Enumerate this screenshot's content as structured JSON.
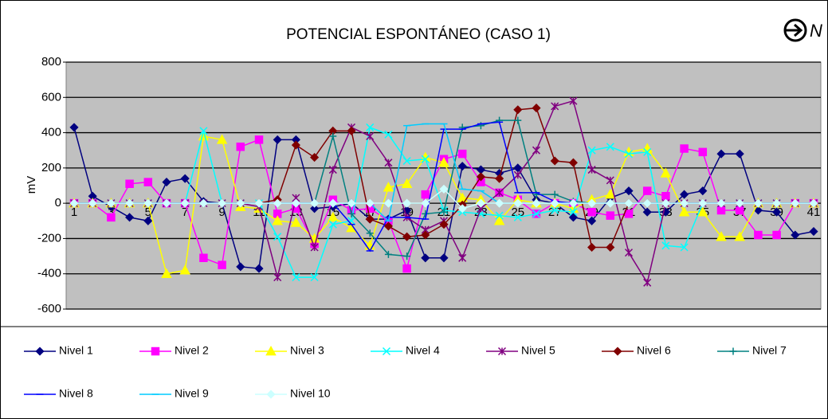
{
  "chart_data": {
    "type": "line",
    "title": "POTENCIAL ESPONTÁNEO (CASO 1)",
    "corner_label": "N",
    "y_label": "mV",
    "categories": [
      1,
      null,
      3,
      null,
      5,
      null,
      7,
      null,
      9,
      null,
      11,
      null,
      13,
      null,
      15,
      null,
      17,
      null,
      19,
      null,
      21,
      null,
      23,
      null,
      25,
      null,
      27,
      null,
      29,
      null,
      31,
      null,
      33,
      null,
      35,
      null,
      37,
      null,
      39,
      null,
      41
    ],
    "ylim": [
      -600,
      800
    ],
    "yticks": [
      -600,
      -400,
      -200,
      0,
      200,
      400,
      600,
      800
    ],
    "grid": true,
    "legend": "bottom",
    "series": [
      {
        "name": "Nivel 1",
        "color": "#000080",
        "marker": "diamond",
        "values": [
          430,
          40,
          -20,
          -80,
          -100,
          120,
          140,
          10,
          0,
          -360,
          -370,
          360,
          360,
          -30,
          -20,
          0,
          -90,
          -90,
          -40,
          -310,
          -310,
          210,
          190,
          170,
          200,
          20,
          0,
          -80,
          -100,
          30,
          70,
          -50,
          -50,
          50,
          70,
          280,
          280,
          -40,
          -50,
          -180,
          -160
        ]
      },
      {
        "name": "Nivel 2",
        "color": "#ff00ff",
        "marker": "square",
        "values": [
          0,
          0,
          -80,
          110,
          120,
          0,
          0,
          -310,
          -350,
          320,
          360,
          -60,
          -30,
          -230,
          20,
          -40,
          -30,
          -100,
          -370,
          50,
          250,
          280,
          120,
          60,
          20,
          -60,
          0,
          0,
          -50,
          -70,
          -60,
          70,
          40,
          310,
          290,
          -40,
          -40,
          -180,
          -180,
          0,
          0
        ]
      },
      {
        "name": "Nivel 3",
        "color": "#ffff00",
        "marker": "triangle",
        "values": [
          0,
          0,
          0,
          0,
          0,
          -400,
          -380,
          380,
          360,
          -20,
          -30,
          -100,
          -110,
          -200,
          -80,
          -140,
          -240,
          90,
          110,
          260,
          230,
          30,
          20,
          -100,
          20,
          0,
          0,
          -30,
          20,
          50,
          290,
          310,
          170,
          -50,
          -50,
          -190,
          -190,
          0,
          0,
          0,
          0
        ]
      },
      {
        "name": "Nivel 4",
        "color": "#00ffff",
        "marker": "x",
        "values": [
          0,
          0,
          0,
          0,
          0,
          0,
          0,
          410,
          0,
          0,
          0,
          -190,
          -420,
          -420,
          -120,
          -100,
          430,
          390,
          240,
          250,
          -40,
          -50,
          -60,
          -70,
          -80,
          -60,
          -40,
          -50,
          300,
          320,
          280,
          290,
          -240,
          -250,
          0,
          0,
          0,
          0,
          0,
          0,
          0
        ]
      },
      {
        "name": "Nivel 5",
        "color": "#800080",
        "marker": "star",
        "values": [
          0,
          0,
          0,
          0,
          0,
          0,
          0,
          0,
          0,
          0,
          -20,
          -420,
          30,
          -250,
          190,
          430,
          380,
          230,
          -80,
          -150,
          -100,
          -310,
          -30,
          60,
          160,
          300,
          550,
          580,
          190,
          130,
          -280,
          -450,
          0,
          0,
          0,
          0,
          0,
          0,
          0,
          0,
          0
        ]
      },
      {
        "name": "Nivel 6",
        "color": "#800000",
        "marker": "diamond",
        "values": [
          0,
          0,
          0,
          0,
          0,
          0,
          0,
          0,
          0,
          0,
          0,
          20,
          330,
          260,
          410,
          410,
          -90,
          -130,
          -190,
          -180,
          -120,
          -10,
          150,
          140,
          530,
          540,
          240,
          230,
          -250,
          -250,
          0,
          0,
          0,
          0,
          0,
          0,
          0,
          0,
          0,
          0,
          0
        ]
      },
      {
        "name": "Nivel 7",
        "color": "#008080",
        "marker": "plus",
        "values": [
          0,
          0,
          0,
          0,
          0,
          0,
          0,
          0,
          0,
          0,
          0,
          0,
          0,
          0,
          380,
          -60,
          -170,
          -290,
          -300,
          -60,
          -50,
          430,
          440,
          470,
          470,
          50,
          50,
          10,
          0,
          0,
          0,
          0,
          0,
          0,
          0,
          0,
          0,
          0,
          0,
          0,
          0
        ]
      },
      {
        "name": "Nivel 8",
        "color": "#0000ff",
        "marker": "dash",
        "values": [
          0,
          0,
          0,
          0,
          0,
          0,
          0,
          0,
          0,
          0,
          0,
          0,
          0,
          0,
          0,
          -120,
          -270,
          -80,
          -80,
          -90,
          420,
          420,
          450,
          460,
          60,
          60,
          10,
          0,
          0,
          0,
          0,
          0,
          0,
          0,
          0,
          0,
          0,
          0,
          0,
          0,
          0
        ]
      },
      {
        "name": "Nivel 9",
        "color": "#00ccff",
        "marker": "dash",
        "values": [
          0,
          0,
          0,
          0,
          0,
          0,
          0,
          0,
          0,
          0,
          0,
          0,
          0,
          0,
          0,
          0,
          0,
          -100,
          440,
          450,
          450,
          80,
          70,
          0,
          0,
          0,
          0,
          0,
          0,
          0,
          0,
          0,
          0,
          0,
          0,
          0,
          0,
          0,
          0,
          0,
          0
        ]
      },
      {
        "name": "Nivel 10",
        "color": "#ccffff",
        "marker": "diamond",
        "values": [
          0,
          0,
          0,
          0,
          0,
          0,
          0,
          0,
          0,
          0,
          0,
          0,
          0,
          0,
          0,
          0,
          0,
          0,
          0,
          0,
          80,
          -30,
          0,
          0,
          0,
          0,
          0,
          0,
          0,
          0,
          0,
          0,
          0,
          0,
          0,
          0,
          0,
          0,
          0,
          0,
          0
        ]
      }
    ]
  }
}
